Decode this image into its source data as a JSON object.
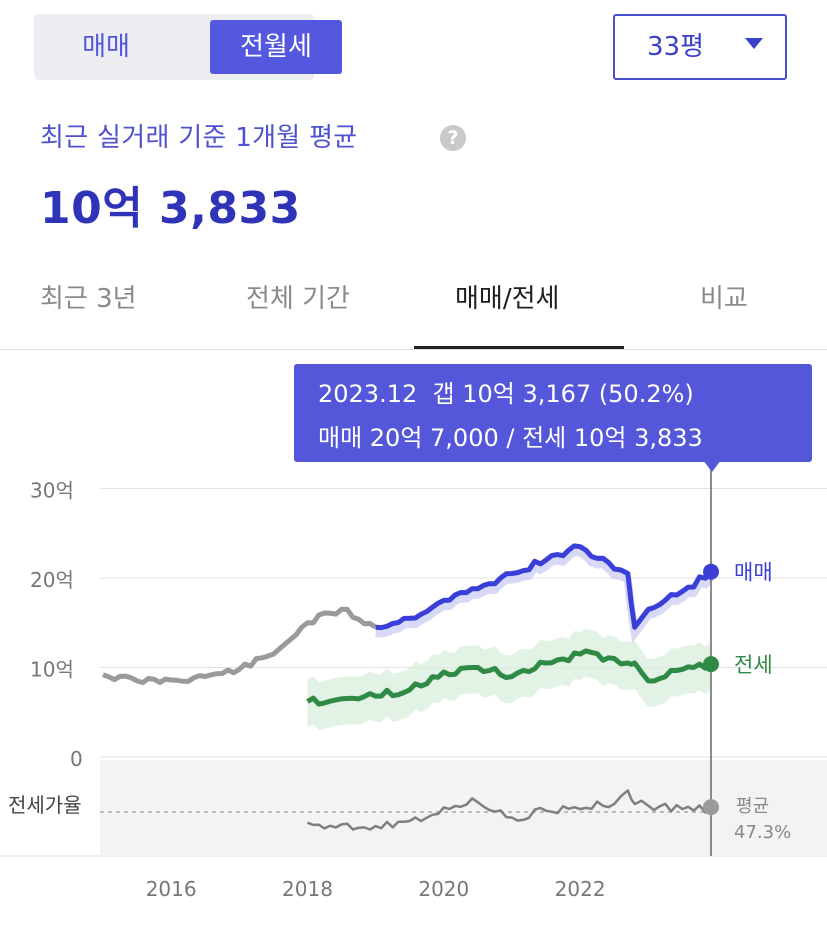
{
  "trade_toggle": {
    "options": [
      "매매",
      "전월세"
    ],
    "selected": "전월세"
  },
  "area_dropdown": {
    "value": "33평"
  },
  "summary": {
    "subtitle": "최근 실거래 기준 1개월 평균",
    "help_icon": "question-circle-icon",
    "price": "10억 3,833"
  },
  "tabs": [
    {
      "label": "최근 3년",
      "active": false
    },
    {
      "label": "전체 기간",
      "active": false
    },
    {
      "label": "매매/전세",
      "active": true
    },
    {
      "label": "비교",
      "active": false
    }
  ],
  "tooltip": {
    "line1": "2023.12  갭 10억 3,167 (50.2%)",
    "line2": "매매 20억 7,000 / 전세 10억 3,833"
  },
  "colors": {
    "accent": "#5457d9",
    "sale_line": "#3a3fd8",
    "jeonse_line": "#2f8a46",
    "history_line": "#9a9a9a",
    "ratio_line": "#7f7f7f"
  },
  "chart_data": {
    "type": "line",
    "x": [
      2015.0,
      2015.5,
      2016.0,
      2016.5,
      2017.0,
      2017.5,
      2018.0,
      2018.5,
      2019.0,
      2019.5,
      2020.0,
      2020.5,
      2021.0,
      2021.5,
      2022.0,
      2022.5,
      2022.7,
      2022.8,
      2023.0,
      2023.5,
      2023.92
    ],
    "xticks": [
      "2016",
      "2018",
      "2020",
      "2022"
    ],
    "yticks": [
      "0",
      "10억",
      "20억",
      "30억"
    ],
    "ylim": [
      0,
      30
    ],
    "grid": true,
    "series": [
      {
        "name": "매매",
        "label_shown": "매매",
        "values": [
          9.2,
          8.5,
          8.6,
          9.0,
          9.8,
          11.5,
          15.0,
          16.5,
          14.5,
          15.5,
          17.5,
          18.8,
          20.5,
          22.0,
          23.5,
          21.0,
          20.5,
          14.5,
          16.5,
          18.5,
          20.7
        ]
      },
      {
        "name": "전세",
        "label_shown": "전세",
        "values": [
          null,
          null,
          null,
          null,
          null,
          null,
          6.2,
          6.5,
          6.8,
          7.5,
          9.5,
          10.0,
          9.0,
          10.5,
          11.5,
          11.0,
          10.5,
          10.5,
          8.5,
          9.8,
          10.38
        ]
      }
    ],
    "ratio_series": {
      "label": "전세가율",
      "avg_label": "평균",
      "avg_value": "47.3%",
      "values": [
        null,
        null,
        null,
        null,
        null,
        null,
        41,
        40,
        39,
        42,
        50,
        53,
        44,
        48,
        49,
        52,
        60,
        52,
        51,
        49,
        50.2
      ]
    },
    "highlight": {
      "x_label": "2023.12",
      "sale": "20억 7,000",
      "jeonse": "10억 3,833"
    }
  }
}
